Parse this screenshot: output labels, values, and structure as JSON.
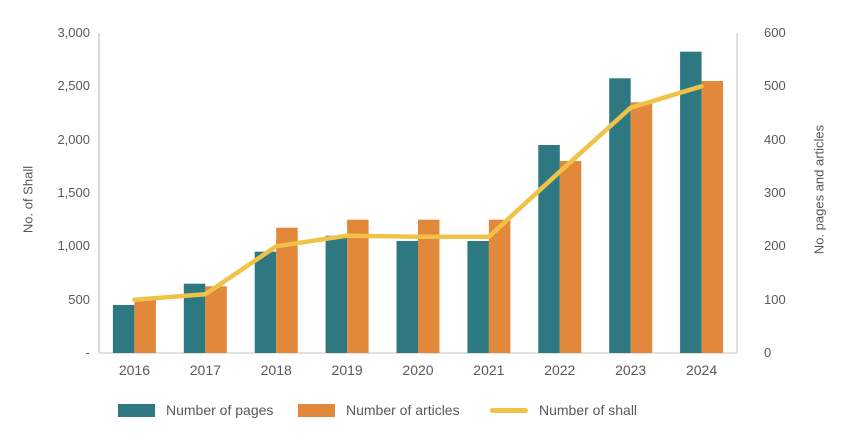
{
  "chart_data": {
    "type": "combo_bar_line",
    "title": "",
    "categories": [
      "2016",
      "2017",
      "2018",
      "2019",
      "2020",
      "2021",
      "2022",
      "2023",
      "2024"
    ],
    "series": [
      {
        "name": "Number of pages",
        "type": "bar",
        "axis": "right",
        "color": "#2e7882",
        "values": [
          90,
          130,
          190,
          220,
          210,
          210,
          390,
          515,
          565
        ]
      },
      {
        "name": "Number of articles",
        "type": "bar",
        "axis": "right",
        "color": "#e2883a",
        "values": [
          100,
          125,
          235,
          250,
          250,
          250,
          360,
          470,
          510
        ]
      },
      {
        "name": "Number of shall",
        "type": "line",
        "axis": "left",
        "color": "#f0c348",
        "values": [
          500,
          550,
          1000,
          1100,
          1090,
          1090,
          1700,
          2300,
          2500
        ]
      }
    ],
    "left_axis": {
      "title": "No. of Shall",
      "min": 0,
      "max": 3000,
      "ticks": [
        {
          "label": "3,000",
          "value": 3000
        },
        {
          "label": "2,500",
          "value": 2500
        },
        {
          "label": "2,000",
          "value": 2000
        },
        {
          "label": "1,500",
          "value": 1500
        },
        {
          "label": "1,000",
          "value": 1000
        },
        {
          "label": "500",
          "value": 500
        },
        {
          "label": "-",
          "value": 0
        }
      ]
    },
    "right_axis": {
      "title": "No. pages and articles",
      "min": 0,
      "max": 600,
      "ticks": [
        {
          "label": "600",
          "value": 600
        },
        {
          "label": "500",
          "value": 500
        },
        {
          "label": "400",
          "value": 400
        },
        {
          "label": "300",
          "value": 300
        },
        {
          "label": "200",
          "value": 200
        },
        {
          "label": "100",
          "value": 100
        },
        {
          "label": "0",
          "value": 0
        }
      ]
    },
    "legend": [
      {
        "label": "Number of pages",
        "swatch": "bar",
        "color": "#2e7882"
      },
      {
        "label": "Number of articles",
        "swatch": "bar",
        "color": "#e2883a"
      },
      {
        "label": "Number of shall",
        "swatch": "line",
        "color": "#f0c348"
      }
    ],
    "grid": "off",
    "legend_position": "bottom",
    "colors": {
      "text": "#595959",
      "axis_line": "#d9d9d9",
      "background": "#ffffff"
    }
  }
}
